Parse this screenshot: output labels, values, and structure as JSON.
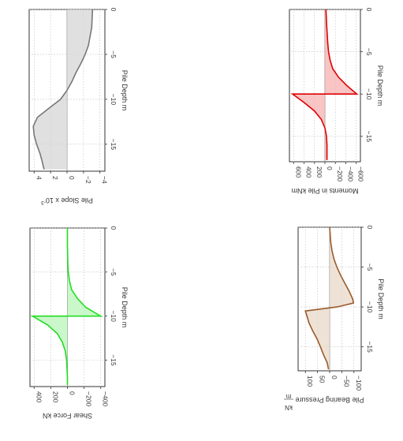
{
  "chart_data": [
    {
      "type": "area",
      "id": "slope",
      "xlabel": "Pile Depth m",
      "ylabel": "Pile Slope x 10",
      "ylabel_exp": "-3",
      "x_ticks": [
        0,
        -5,
        -10,
        -15
      ],
      "y_ticks": [
        4,
        2,
        0,
        -2,
        -4
      ],
      "xlim": [
        0,
        -18
      ],
      "ylim": [
        4.6,
        -4.6
      ],
      "colors": {
        "line": "#777777",
        "fill": "#d6d6d6"
      },
      "grid": true,
      "points": [
        [
          0,
          -3.1
        ],
        [
          -2,
          -3.0
        ],
        [
          -4,
          -2.6
        ],
        [
          -5,
          -2.2
        ],
        [
          -6,
          -1.7
        ],
        [
          -7,
          -1.1
        ],
        [
          -8,
          -0.6
        ],
        [
          -9,
          0.0
        ],
        [
          -10,
          0.8
        ],
        [
          -11,
          2.2
        ],
        [
          -12,
          3.6
        ],
        [
          -13,
          4.1
        ],
        [
          -14,
          4.0
        ],
        [
          -15,
          3.7
        ],
        [
          -16,
          3.3
        ],
        [
          -17,
          3.0
        ],
        [
          -17.8,
          2.8
        ]
      ]
    },
    {
      "type": "area",
      "id": "moment",
      "xlabel": "Pile Depth m",
      "ylabel": "Moments in Pile kNm",
      "x_ticks": [
        0,
        -5,
        -10,
        -15
      ],
      "y_ticks": [
        600,
        400,
        200,
        0,
        -200,
        -400,
        -600
      ],
      "xlim": [
        0,
        -18
      ],
      "ylim": [
        680,
        -680
      ],
      "colors": {
        "line": "#e00000",
        "fill": "#f6b0b0"
      },
      "grid": true,
      "points": [
        [
          0,
          -20
        ],
        [
          -2,
          -35
        ],
        [
          -4,
          -55
        ],
        [
          -5,
          -70
        ],
        [
          -6,
          -100
        ],
        [
          -7,
          -150
        ],
        [
          -8,
          -260
        ],
        [
          -9,
          -420
        ],
        [
          -10,
          -610
        ],
        [
          -10,
          620
        ],
        [
          -11,
          400
        ],
        [
          -12,
          200
        ],
        [
          -13,
          70
        ],
        [
          -14,
          0
        ],
        [
          -15,
          -30
        ],
        [
          -16,
          -40
        ],
        [
          -17,
          -40
        ],
        [
          -17.8,
          -40
        ]
      ]
    },
    {
      "type": "area",
      "id": "shear",
      "xlabel": "Pile Depth m",
      "ylabel": "Shear Force kN",
      "x_ticks": [
        0,
        -5,
        -10,
        -15
      ],
      "y_ticks": [
        400,
        200,
        0,
        -200,
        -400
      ],
      "xlim": [
        0,
        -18
      ],
      "ylim": [
        450,
        -450
      ],
      "colors": {
        "line": "#22dd22",
        "fill": "#b8f5b8"
      },
      "grid": true,
      "points": [
        [
          0,
          0
        ],
        [
          -2,
          0
        ],
        [
          -4,
          -5
        ],
        [
          -5,
          -10
        ],
        [
          -6,
          -25
        ],
        [
          -7,
          -50
        ],
        [
          -8,
          -120
        ],
        [
          -9,
          -220
        ],
        [
          -10,
          -400
        ],
        [
          -10,
          420
        ],
        [
          -11,
          240
        ],
        [
          -12,
          120
        ],
        [
          -13,
          60
        ],
        [
          -14,
          25
        ],
        [
          -15,
          10
        ],
        [
          -16,
          5
        ],
        [
          -17,
          0
        ],
        [
          -17.8,
          0
        ]
      ]
    },
    {
      "type": "area",
      "id": "bearing",
      "xlabel": "Pile Depth m",
      "ylabel": "Pile Bearing Pressure",
      "ylabel_unit": "kN",
      "ylabel_unit_den": "m",
      "x_ticks": [
        0,
        -5,
        -10,
        -15
      ],
      "y_ticks": [
        100,
        50,
        0,
        -50,
        -100
      ],
      "xlim": [
        0,
        -18
      ],
      "ylim": [
        130,
        -130
      ],
      "colors": {
        "line": "#9a5a2a",
        "fill": "#e8d8c8"
      },
      "grid": true,
      "points": [
        [
          0,
          0
        ],
        [
          -2,
          -5
        ],
        [
          -3,
          -10
        ],
        [
          -4,
          -18
        ],
        [
          -5,
          -30
        ],
        [
          -6,
          -45
        ],
        [
          -7,
          -62
        ],
        [
          -8,
          -80
        ],
        [
          -9,
          -95
        ],
        [
          -9.5,
          -98
        ],
        [
          -10,
          -30
        ],
        [
          -10.5,
          100
        ],
        [
          -11,
          95
        ],
        [
          -12,
          85
        ],
        [
          -13,
          70
        ],
        [
          -14,
          52
        ],
        [
          -15,
          38
        ],
        [
          -16,
          25
        ],
        [
          -17,
          10
        ],
        [
          -17.8,
          5
        ]
      ]
    }
  ]
}
